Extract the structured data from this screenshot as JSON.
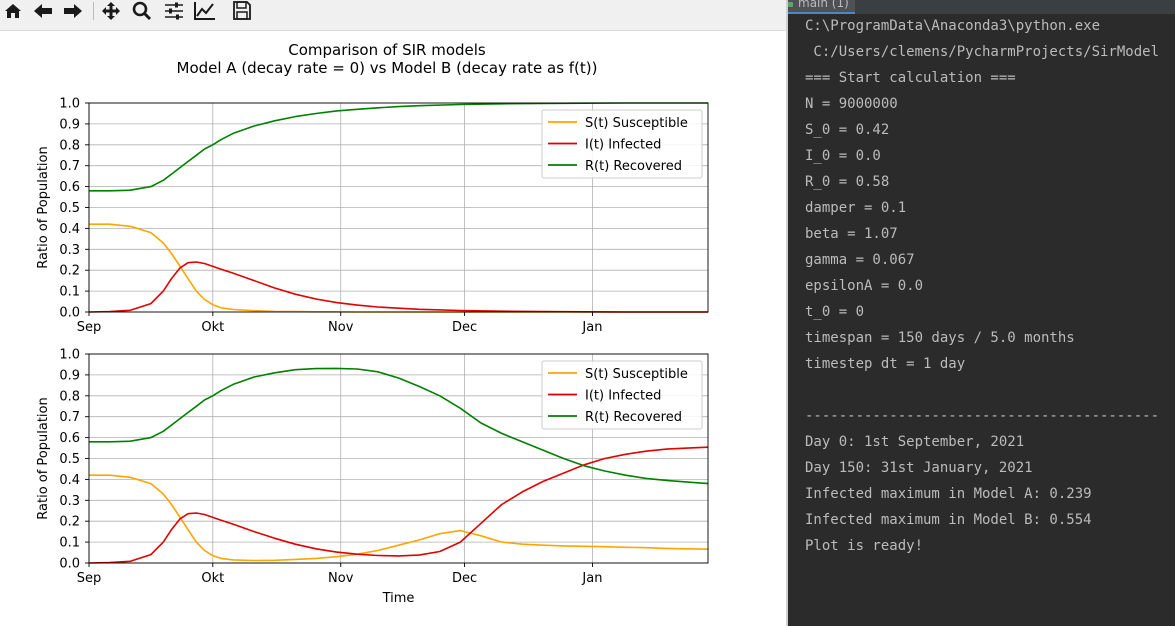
{
  "toolbar": {
    "buttons": [
      {
        "name": "home-button",
        "icon": "home-icon"
      },
      {
        "name": "back-button",
        "icon": "arrow-left-icon"
      },
      {
        "name": "forward-button",
        "icon": "arrow-right-icon"
      },
      {
        "name": "pan-button",
        "icon": "move-icon"
      },
      {
        "name": "zoom-button",
        "icon": "magnifier-icon"
      },
      {
        "name": "configure-subplots-button",
        "icon": "sliders-icon"
      },
      {
        "name": "edit-axis-button",
        "icon": "line-chart-icon"
      },
      {
        "name": "save-button",
        "icon": "floppy-disk-icon"
      }
    ]
  },
  "figure": {
    "title_line1": "Comparison of SIR models",
    "title_line2": "Model A (decay rate = 0) vs Model B (decay rate as f(t))"
  },
  "chart_data": [
    {
      "type": "line",
      "ylabel": "Ratio of Population",
      "xlabel": "",
      "xlim": [
        0,
        150
      ],
      "ylim": [
        0,
        1.0
      ],
      "x_ticks": [
        {
          "day": 0,
          "label": "Sep"
        },
        {
          "day": 30,
          "label": "Okt"
        },
        {
          "day": 61,
          "label": "Nov"
        },
        {
          "day": 91,
          "label": "Dec"
        },
        {
          "day": 122,
          "label": "Jan"
        }
      ],
      "y_ticks": [
        "0.0",
        "0.1",
        "0.2",
        "0.3",
        "0.4",
        "0.5",
        "0.6",
        "0.7",
        "0.8",
        "0.9",
        "1.0"
      ],
      "grid": true,
      "legend": "top-right",
      "x": [
        0,
        5,
        10,
        15,
        18,
        20,
        22,
        24,
        26,
        28,
        30,
        32,
        35,
        40,
        45,
        50,
        55,
        60,
        65,
        70,
        75,
        80,
        90,
        100,
        110,
        120,
        130,
        140,
        150
      ],
      "series": [
        {
          "name": "S(t) Susceptible",
          "color": "#ffa500",
          "values": [
            0.42,
            0.42,
            0.41,
            0.38,
            0.33,
            0.28,
            0.22,
            0.16,
            0.1,
            0.06,
            0.035,
            0.02,
            0.012,
            0.006,
            0.003,
            0.002,
            0.001,
            0.001,
            0.0,
            0.0,
            0.0,
            0.0,
            0.0,
            0.0,
            0.0,
            0.0,
            0.0,
            0.0,
            0.0
          ]
        },
        {
          "name": "I(t) Infected",
          "color": "#e00000",
          "values": [
            0.0,
            0.002,
            0.008,
            0.04,
            0.1,
            0.16,
            0.21,
            0.236,
            0.239,
            0.232,
            0.218,
            0.205,
            0.185,
            0.15,
            0.115,
            0.085,
            0.062,
            0.045,
            0.033,
            0.024,
            0.018,
            0.013,
            0.007,
            0.004,
            0.002,
            0.001,
            0.0,
            0.0,
            0.0
          ]
        },
        {
          "name": "R(t) Recovered",
          "color": "#008000",
          "values": [
            0.58,
            0.58,
            0.583,
            0.6,
            0.63,
            0.66,
            0.69,
            0.72,
            0.75,
            0.78,
            0.8,
            0.825,
            0.855,
            0.89,
            0.915,
            0.935,
            0.95,
            0.962,
            0.97,
            0.977,
            0.983,
            0.987,
            0.993,
            0.996,
            0.998,
            0.999,
            1.0,
            1.0,
            1.0
          ]
        }
      ]
    },
    {
      "type": "line",
      "ylabel": "Ratio of Population",
      "xlabel": "Time",
      "xlim": [
        0,
        150
      ],
      "ylim": [
        0,
        1.0
      ],
      "x_ticks": [
        {
          "day": 0,
          "label": "Sep"
        },
        {
          "day": 30,
          "label": "Okt"
        },
        {
          "day": 61,
          "label": "Nov"
        },
        {
          "day": 91,
          "label": "Dec"
        },
        {
          "day": 122,
          "label": "Jan"
        }
      ],
      "y_ticks": [
        "0.0",
        "0.1",
        "0.2",
        "0.3",
        "0.4",
        "0.5",
        "0.6",
        "0.7",
        "0.8",
        "0.9",
        "1.0"
      ],
      "grid": true,
      "legend": "top-right",
      "x": [
        0,
        5,
        10,
        15,
        18,
        20,
        22,
        24,
        26,
        28,
        30,
        32,
        35,
        40,
        45,
        50,
        55,
        60,
        65,
        70,
        75,
        80,
        85,
        90,
        95,
        100,
        105,
        110,
        115,
        120,
        125,
        130,
        135,
        140,
        145,
        150
      ],
      "series": [
        {
          "name": "S(t) Susceptible",
          "color": "#ffa500",
          "values": [
            0.42,
            0.42,
            0.41,
            0.38,
            0.33,
            0.28,
            0.22,
            0.16,
            0.1,
            0.06,
            0.035,
            0.022,
            0.015,
            0.012,
            0.013,
            0.017,
            0.022,
            0.03,
            0.042,
            0.06,
            0.085,
            0.11,
            0.14,
            0.155,
            0.13,
            0.1,
            0.09,
            0.085,
            0.082,
            0.08,
            0.078,
            0.075,
            0.073,
            0.07,
            0.068,
            0.066
          ]
        },
        {
          "name": "I(t) Infected",
          "color": "#e00000",
          "values": [
            0.0,
            0.002,
            0.008,
            0.04,
            0.1,
            0.16,
            0.21,
            0.236,
            0.239,
            0.232,
            0.218,
            0.205,
            0.185,
            0.15,
            0.118,
            0.09,
            0.068,
            0.052,
            0.042,
            0.036,
            0.034,
            0.038,
            0.055,
            0.1,
            0.19,
            0.28,
            0.34,
            0.39,
            0.43,
            0.47,
            0.5,
            0.52,
            0.535,
            0.545,
            0.55,
            0.554
          ]
        },
        {
          "name": "R(t) Recovered",
          "color": "#008000",
          "values": [
            0.58,
            0.58,
            0.583,
            0.6,
            0.63,
            0.66,
            0.69,
            0.72,
            0.75,
            0.78,
            0.8,
            0.825,
            0.855,
            0.89,
            0.91,
            0.925,
            0.93,
            0.931,
            0.928,
            0.915,
            0.885,
            0.845,
            0.8,
            0.74,
            0.67,
            0.62,
            0.58,
            0.54,
            0.5,
            0.465,
            0.44,
            0.42,
            0.405,
            0.395,
            0.387,
            0.38
          ]
        }
      ]
    }
  ],
  "run_panel": {
    "tab_label": "main (1)"
  },
  "console": {
    "lines": [
      "C:\\ProgramData\\Anaconda3\\python.exe",
      " C:/Users/clemens/PycharmProjects/SirModel",
      "=== Start calculation ===",
      "N = 9000000",
      "S_0 = 0.42",
      "I_0 = 0.0",
      "R_0 = 0.58",
      "damper = 0.1",
      "beta = 1.07",
      "gamma = 0.067",
      "epsilonA = 0.0",
      "t_0 = 0",
      "timespan = 150 days / 5.0 months",
      "timestep dt = 1 day",
      "",
      "------------------------------------------",
      "Day 0: 1st September, 2021",
      "Day 150: 31st January, 2021",
      "Infected maximum in Model A: 0.239",
      "Infected maximum in Model B: 0.554",
      "Plot is ready!"
    ]
  }
}
